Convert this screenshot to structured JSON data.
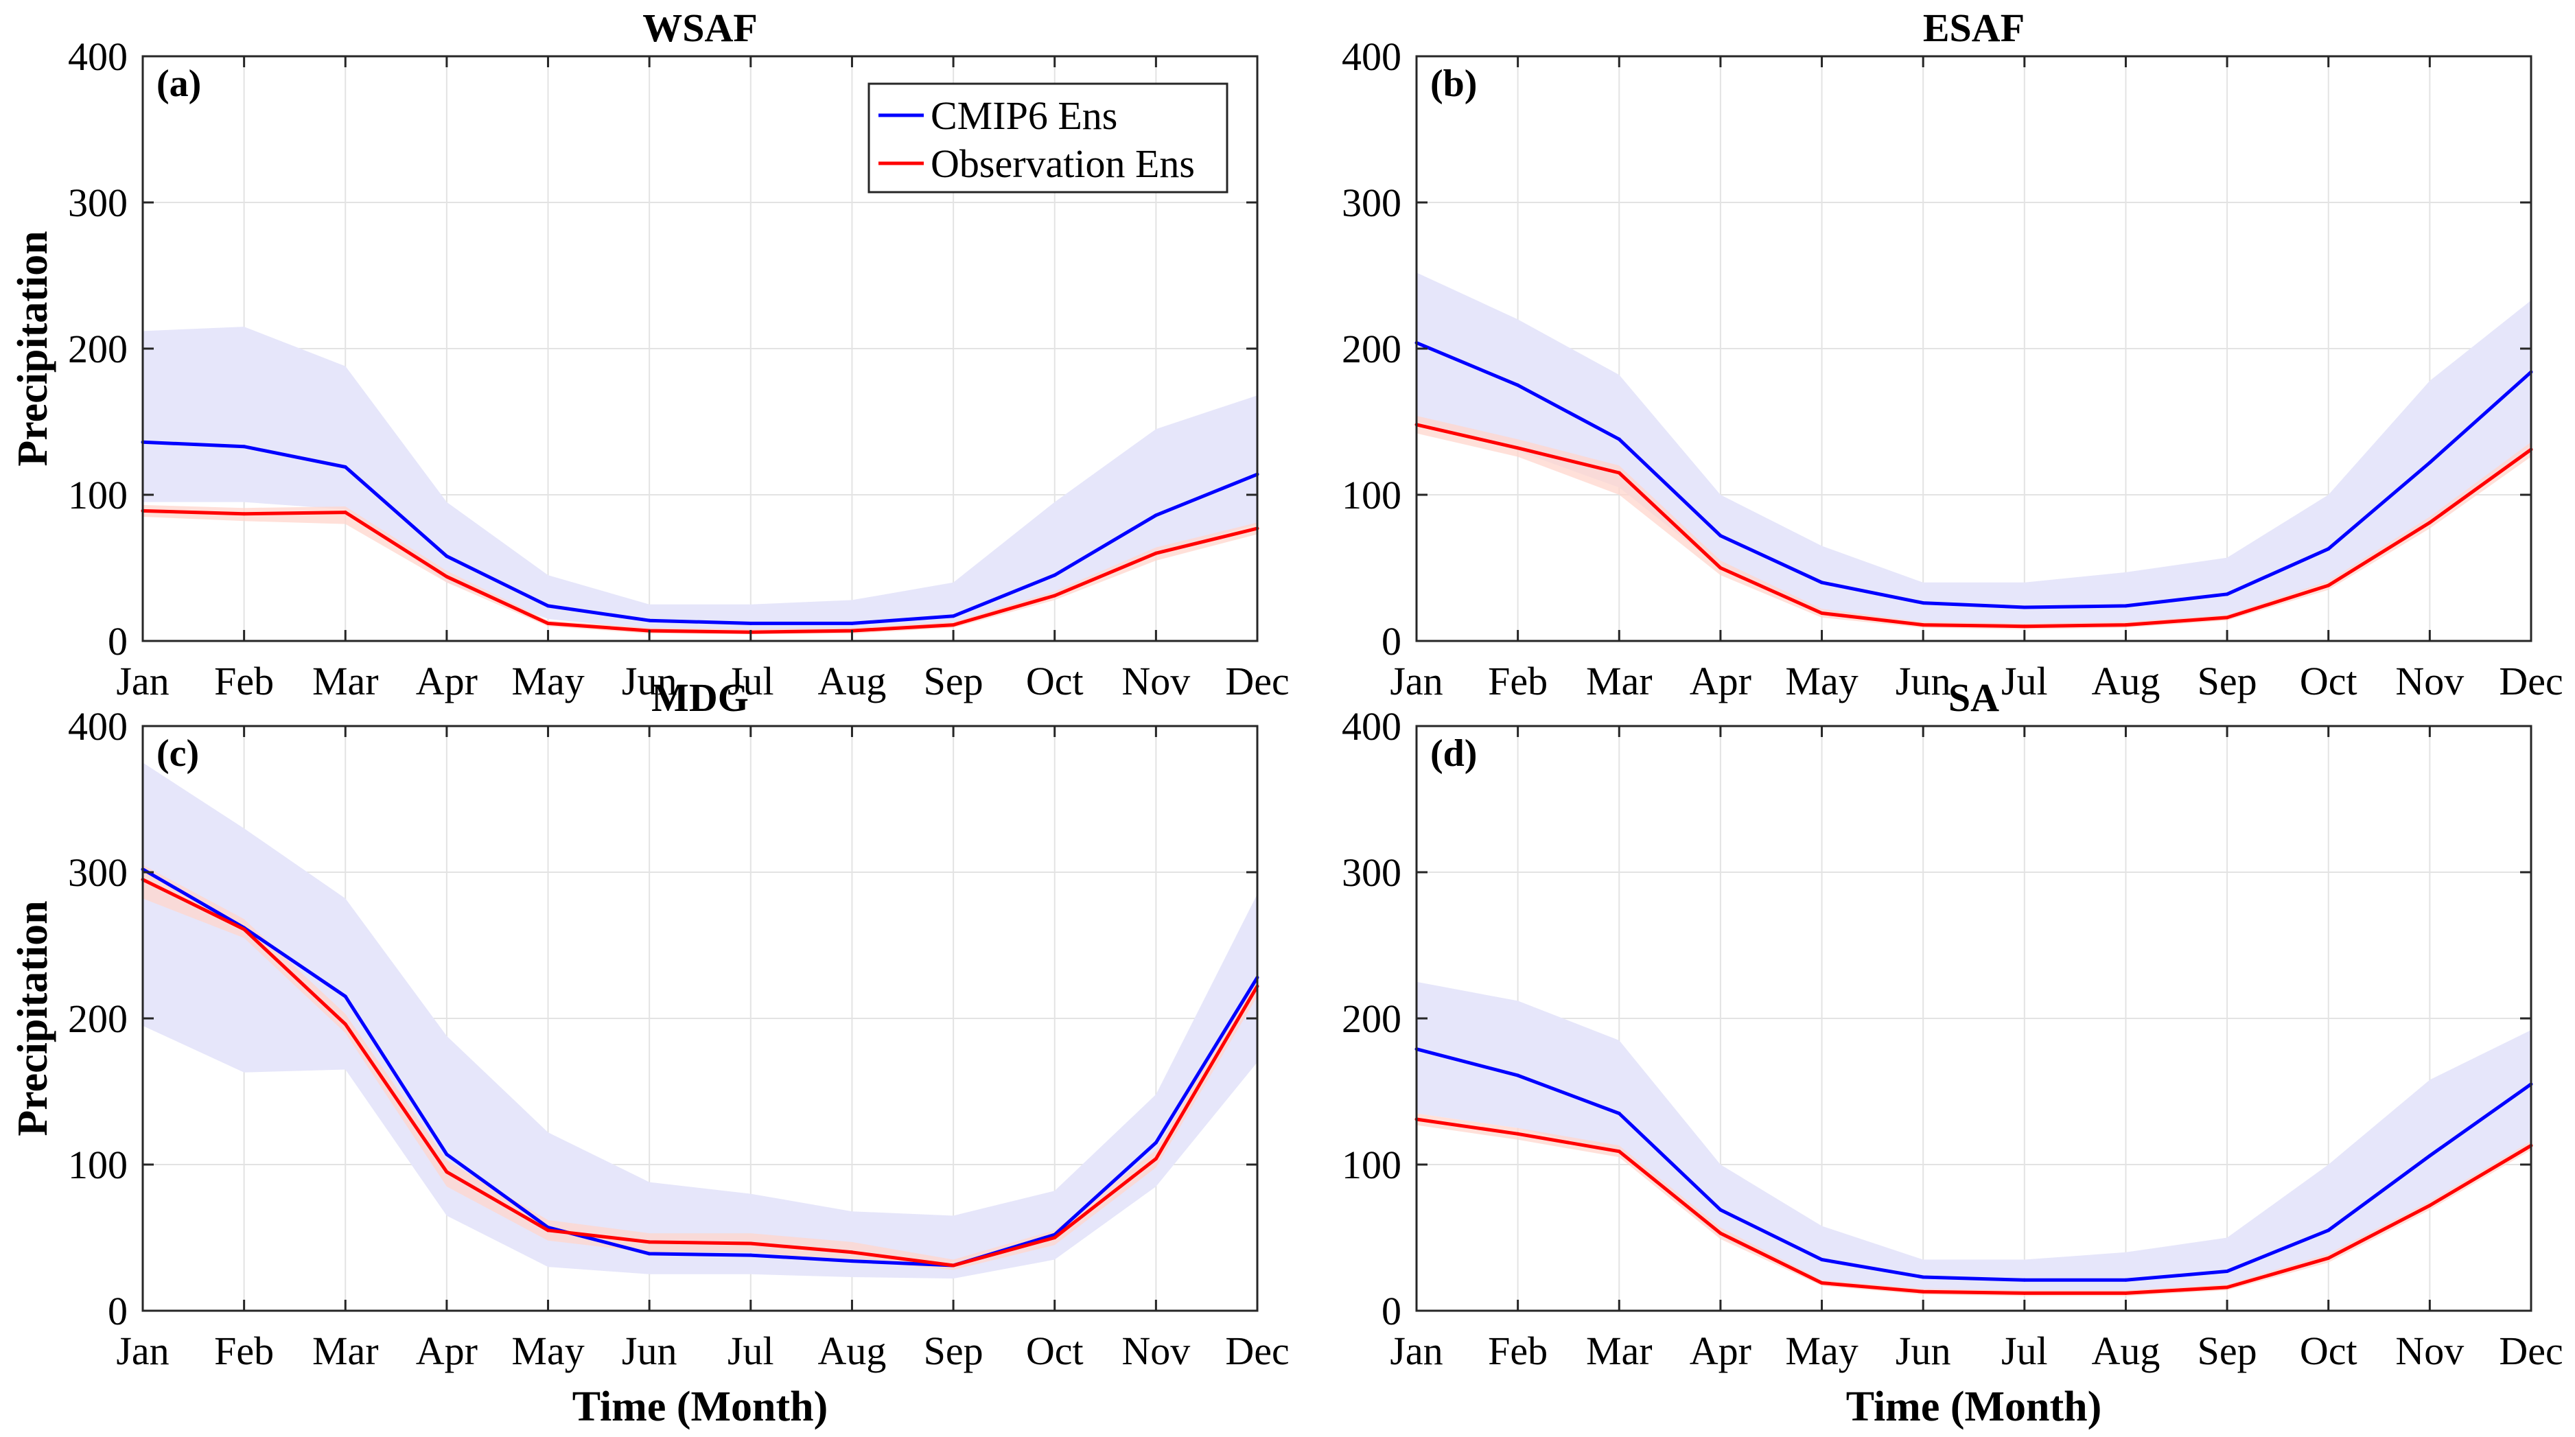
{
  "months": [
    "Jan",
    "Feb",
    "Mar",
    "Apr",
    "May",
    "Jun",
    "Jul",
    "Aug",
    "Sep",
    "Oct",
    "Nov",
    "Dec"
  ],
  "colors": {
    "cmip6": "#0000ff",
    "obs": "#ff0000",
    "cmip6_band": "#e6e6fa",
    "obs_band": "#ffd6cc"
  },
  "legend": {
    "cmip6": "CMIP6 Ens",
    "obs": "Observation Ens"
  },
  "chart_data": [
    {
      "type": "line",
      "panel": "(a)",
      "title": "WSAF",
      "xlabel": "",
      "ylabel": "Precipitation",
      "ylim": [
        0,
        400
      ],
      "yticks": [
        0,
        100,
        200,
        300,
        400
      ],
      "series": [
        {
          "name": "CMIP6 Ens",
          "values": [
            136,
            133,
            119,
            58,
            24,
            14,
            12,
            12,
            17,
            45,
            86,
            114
          ],
          "band_lower": [
            95,
            95,
            90,
            40,
            15,
            8,
            6,
            6,
            10,
            30,
            60,
            80
          ],
          "band_upper": [
            212,
            215,
            188,
            95,
            45,
            25,
            25,
            28,
            40,
            95,
            145,
            168
          ]
        },
        {
          "name": "Observation Ens",
          "values": [
            89,
            87,
            88,
            44,
            12,
            7,
            6,
            7,
            11,
            31,
            60,
            77
          ],
          "band_lower": [
            85,
            82,
            80,
            40,
            10,
            5,
            5,
            5,
            9,
            28,
            55,
            73
          ],
          "band_upper": [
            93,
            91,
            92,
            48,
            14,
            9,
            8,
            9,
            13,
            34,
            64,
            81
          ]
        }
      ]
    },
    {
      "type": "line",
      "panel": "(b)",
      "title": "ESAF",
      "xlabel": "",
      "ylabel": "",
      "ylim": [
        0,
        400
      ],
      "yticks": [
        0,
        100,
        200,
        300,
        400
      ],
      "series": [
        {
          "name": "CMIP6 Ens",
          "values": [
            204,
            175,
            138,
            72,
            40,
            26,
            23,
            24,
            32,
            63,
            122,
            184
          ],
          "band_lower": [
            150,
            130,
            105,
            50,
            20,
            12,
            10,
            10,
            17,
            40,
            80,
            130
          ],
          "band_upper": [
            252,
            220,
            182,
            100,
            65,
            40,
            40,
            47,
            57,
            100,
            178,
            233
          ]
        },
        {
          "name": "Observation Ens",
          "values": [
            148,
            132,
            115,
            50,
            19,
            11,
            10,
            11,
            16,
            38,
            81,
            131
          ],
          "band_lower": [
            142,
            126,
            100,
            45,
            16,
            9,
            8,
            9,
            14,
            35,
            77,
            126
          ],
          "band_upper": [
            154,
            138,
            120,
            55,
            22,
            13,
            12,
            13,
            18,
            41,
            85,
            136
          ]
        }
      ]
    },
    {
      "type": "line",
      "panel": "(c)",
      "title": "MDG",
      "xlabel": "Time (Month)",
      "ylabel": "Precipitation",
      "ylim": [
        0,
        400
      ],
      "yticks": [
        0,
        100,
        200,
        300,
        400
      ],
      "series": [
        {
          "name": "CMIP6 Ens",
          "values": [
            302,
            262,
            215,
            107,
            57,
            39,
            38,
            34,
            31,
            52,
            115,
            228
          ],
          "band_lower": [
            195,
            163,
            165,
            65,
            30,
            25,
            25,
            23,
            22,
            35,
            85,
            170
          ],
          "band_upper": [
            375,
            330,
            282,
            188,
            122,
            88,
            80,
            68,
            65,
            82,
            148,
            285
          ]
        },
        {
          "name": "Observation Ens",
          "values": [
            295,
            261,
            196,
            95,
            55,
            47,
            46,
            40,
            31,
            50,
            104,
            222
          ],
          "band_lower": [
            282,
            255,
            190,
            85,
            48,
            40,
            40,
            34,
            28,
            45,
            98,
            215
          ],
          "band_upper": [
            305,
            268,
            203,
            103,
            62,
            53,
            53,
            47,
            35,
            55,
            110,
            230
          ]
        }
      ]
    },
    {
      "type": "line",
      "panel": "(d)",
      "title": "SA",
      "xlabel": "Time (Month)",
      "ylabel": "",
      "ylim": [
        0,
        400
      ],
      "yticks": [
        0,
        100,
        200,
        300,
        400
      ],
      "series": [
        {
          "name": "CMIP6 Ens",
          "values": [
            179,
            161,
            135,
            69,
            35,
            23,
            21,
            21,
            27,
            55,
            106,
            155
          ],
          "band_lower": [
            135,
            125,
            108,
            50,
            20,
            13,
            12,
            12,
            16,
            35,
            72,
            112
          ],
          "band_upper": [
            225,
            212,
            185,
            100,
            58,
            35,
            35,
            40,
            50,
            100,
            158,
            192
          ]
        },
        {
          "name": "Observation Ens",
          "values": [
            131,
            121,
            109,
            53,
            19,
            13,
            12,
            12,
            16,
            36,
            72,
            113
          ],
          "band_lower": [
            127,
            117,
            105,
            49,
            17,
            11,
            10,
            10,
            14,
            33,
            69,
            110
          ],
          "band_upper": [
            135,
            125,
            113,
            57,
            21,
            15,
            14,
            14,
            18,
            39,
            75,
            116
          ]
        }
      ]
    }
  ]
}
